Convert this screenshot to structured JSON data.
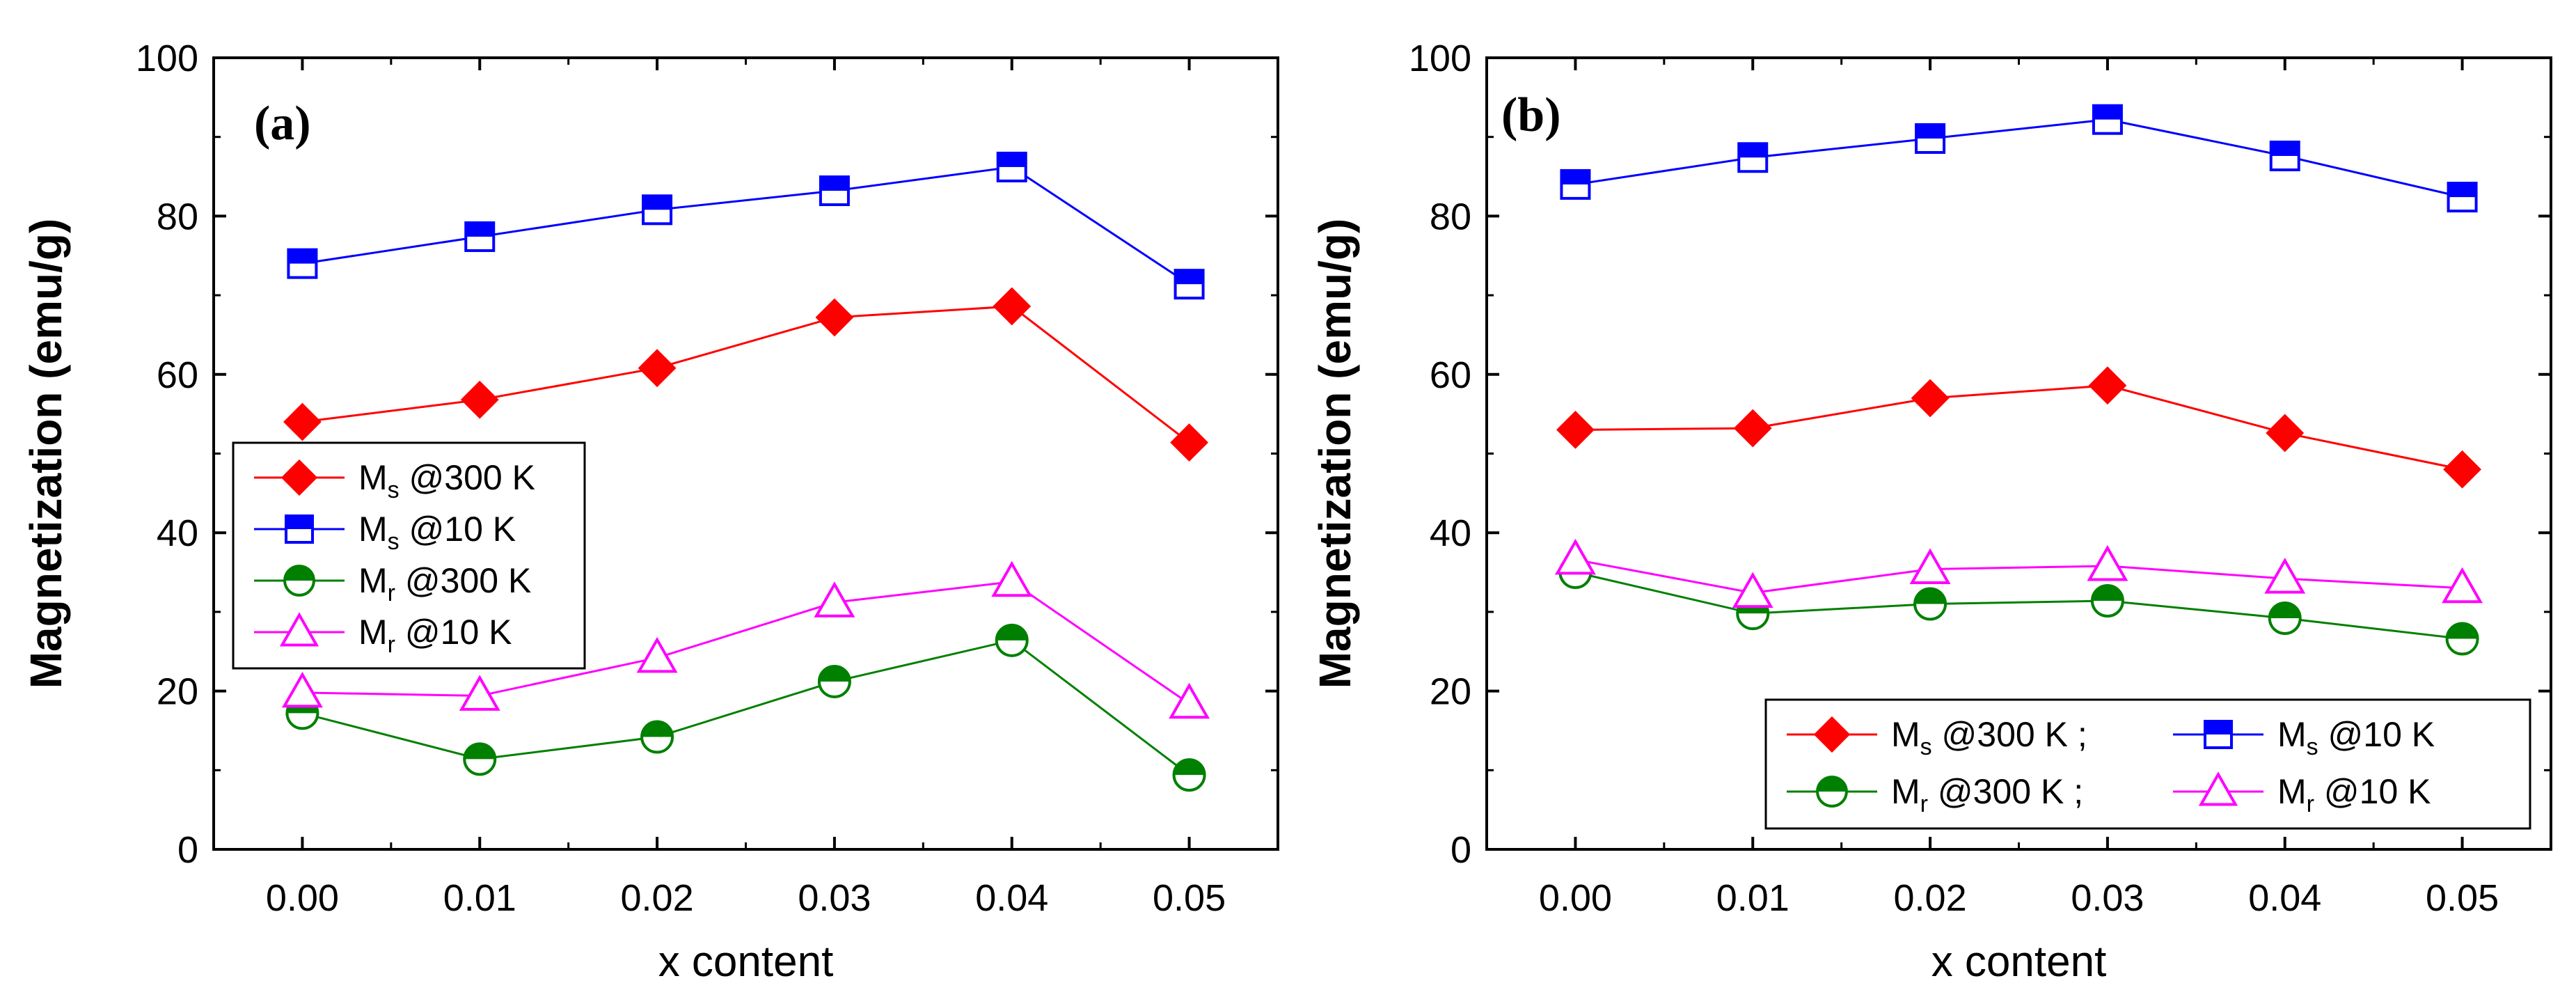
{
  "colors": {
    "ms300": "#ff0000",
    "ms10": "#0000ff",
    "mr300": "#008000",
    "mr10": "#ff00ff"
  },
  "chart_data": [
    {
      "type": "line",
      "panel_label": "(a)",
      "xlabel": "x content",
      "ylabel": "Magnetization (emu/g)",
      "xlim": [
        -0.005,
        0.055
      ],
      "ylim": [
        0,
        100
      ],
      "xticks": [
        "0.00",
        "0.01",
        "0.02",
        "0.03",
        "0.04",
        "0.05"
      ],
      "yticks": [
        "0",
        "20",
        "40",
        "60",
        "80",
        "100"
      ],
      "x": [
        0.0,
        0.01,
        0.02,
        0.03,
        0.04,
        0.05
      ],
      "legend_position": "center-left",
      "series": [
        {
          "name": "Ms @300 K",
          "label_main": "M",
          "label_sub": "s",
          "label_rest": " @300 K",
          "marker": "diamond",
          "color": "#ff0000",
          "values": [
            54.0,
            56.8,
            60.8,
            67.2,
            68.6,
            51.4
          ]
        },
        {
          "name": "Ms @10 K",
          "label_main": "M",
          "label_sub": "s",
          "label_rest": " @10 K",
          "marker": "square-half",
          "color": "#0000ff",
          "values": [
            74.0,
            77.4,
            80.8,
            83.2,
            86.2,
            71.4
          ]
        },
        {
          "name": "Mr @300 K",
          "label_main": "M",
          "label_sub": "r",
          "label_rest": " @300 K",
          "marker": "circle-half",
          "color": "#008000",
          "values": [
            17.2,
            11.4,
            14.2,
            21.2,
            26.4,
            9.4
          ]
        },
        {
          "name": "Mr @10 K",
          "label_main": "M",
          "label_sub": "r",
          "label_rest": " @10 K",
          "marker": "triangle",
          "color": "#ff00ff",
          "values": [
            19.8,
            19.4,
            24.2,
            31.2,
            33.8,
            18.4
          ]
        }
      ]
    },
    {
      "type": "line",
      "panel_label": "(b)",
      "xlabel": "x content",
      "ylabel": "Magnetization (emu/g)",
      "xlim": [
        -0.005,
        0.055
      ],
      "ylim": [
        0,
        100
      ],
      "xticks": [
        "0.00",
        "0.01",
        "0.02",
        "0.03",
        "0.04",
        "0.05"
      ],
      "yticks": [
        "0",
        "20",
        "40",
        "60",
        "80",
        "100"
      ],
      "x": [
        0.0,
        0.01,
        0.02,
        0.03,
        0.04,
        0.05
      ],
      "legend_position": "bottom-right",
      "series": [
        {
          "name": "Ms @300 K ;",
          "label_main": "M",
          "label_sub": "s",
          "label_rest": " @300 K ;",
          "marker": "diamond",
          "color": "#ff0000",
          "values": [
            53.0,
            53.2,
            57.0,
            58.6,
            52.6,
            48.0
          ]
        },
        {
          "name": "Ms @10 K",
          "label_main": "M",
          "label_sub": "s",
          "label_rest": " @10 K",
          "marker": "square-half",
          "color": "#0000ff",
          "values": [
            84.0,
            87.4,
            89.8,
            92.2,
            87.6,
            82.4
          ]
        },
        {
          "name": "Mr @300 K ;",
          "label_main": "M",
          "label_sub": "r",
          "label_rest": " @300 K ;",
          "marker": "circle-half",
          "color": "#008000",
          "values": [
            35.0,
            29.8,
            31.0,
            31.4,
            29.2,
            26.6
          ]
        },
        {
          "name": "Mr @10 K",
          "label_main": "M",
          "label_sub": "r",
          "label_rest": " @10 K",
          "marker": "triangle",
          "color": "#ff00ff",
          "values": [
            36.6,
            32.4,
            35.4,
            35.8,
            34.2,
            33.0
          ]
        }
      ]
    }
  ]
}
